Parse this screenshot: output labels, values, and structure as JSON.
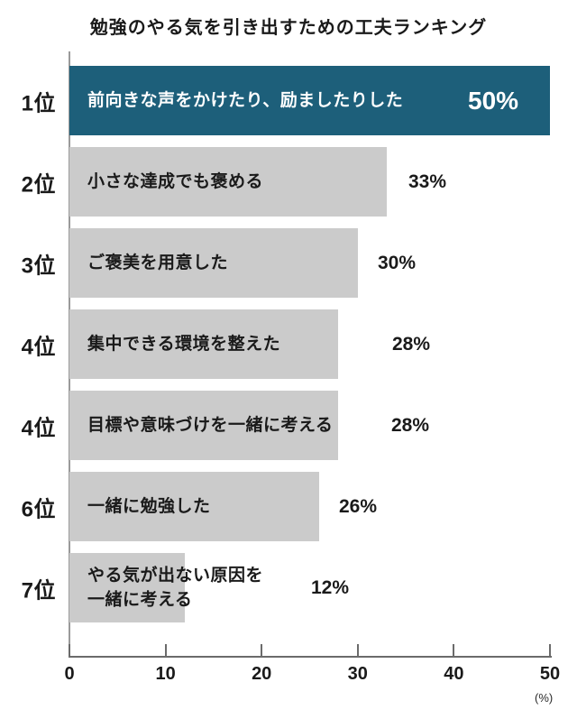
{
  "title": "勉強のやる気を引き出すための工夫ランキング",
  "chart_data": {
    "type": "bar",
    "orientation": "horizontal",
    "title": "勉強のやる気を引き出すための工夫ランキング",
    "unit_label": "(%)",
    "xlim": [
      0,
      50
    ],
    "x_ticks": [
      0,
      10,
      20,
      30,
      40,
      50
    ],
    "legend": "none",
    "grid": "off",
    "rows": [
      {
        "rank": "1位",
        "label": "前向きな声をかけたり、励ましたりした",
        "value": 50,
        "value_label": "50%",
        "highlight": true
      },
      {
        "rank": "2位",
        "label": "小さな達成でも褒める",
        "value": 33,
        "value_label": "33%",
        "highlight": false
      },
      {
        "rank": "3位",
        "label": "ご褒美を用意した",
        "value": 30,
        "value_label": "30%",
        "highlight": false
      },
      {
        "rank": "4位",
        "label": "集中できる環境を整えた",
        "value": 28,
        "value_label": "28%",
        "highlight": false
      },
      {
        "rank": "4位",
        "label": "目標や意味づけを一緒に考える",
        "value": 28,
        "value_label": "28%",
        "highlight": false
      },
      {
        "rank": "6位",
        "label": "一緒に勉強した",
        "value": 26,
        "value_label": "26%",
        "highlight": false
      },
      {
        "rank": "7位",
        "label": "やる気が出ない原因を\n一緒に考える",
        "value": 12,
        "value_label": "12%",
        "highlight": false
      }
    ],
    "colors": {
      "highlight_bar": "#1d5f7a",
      "bar": "#cbcbcb",
      "highlight_text": "#ffffff",
      "text": "#1a1a1a",
      "axis": "#6b6b6b"
    }
  }
}
